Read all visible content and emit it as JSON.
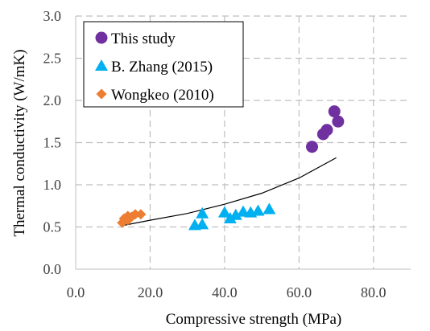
{
  "chart_data": {
    "type": "scatter",
    "xlabel": "Compressive strength (MPa)",
    "ylabel": "Thermal conductivity (W/mK)",
    "xlim": [
      0,
      90
    ],
    "ylim": [
      0,
      3.0
    ],
    "x_ticks": [
      0,
      20,
      40,
      60,
      80
    ],
    "x_tick_labels": [
      "0.0",
      "20.0",
      "40.0",
      "60.0",
      "80.0"
    ],
    "y_ticks": [
      0,
      0.5,
      1.0,
      1.5,
      2.0,
      2.5,
      3.0
    ],
    "y_tick_labels": [
      "0.0",
      "0.5",
      "1.0",
      "1.5",
      "2.0",
      "2.5",
      "3.0"
    ],
    "grid": true,
    "legend_position": "top-left",
    "series": [
      {
        "name": "This study",
        "marker": "circle",
        "color": "#7030A0",
        "points": [
          [
            63.5,
            1.45
          ],
          [
            66.5,
            1.6
          ],
          [
            67.5,
            1.65
          ],
          [
            69.5,
            1.87
          ],
          [
            70.5,
            1.75
          ]
        ]
      },
      {
        "name": "B. Zhang (2015)",
        "marker": "triangle",
        "color": "#00B0F0",
        "points": [
          [
            32,
            0.52
          ],
          [
            34,
            0.53
          ],
          [
            34,
            0.66
          ],
          [
            40,
            0.67
          ],
          [
            41.5,
            0.6
          ],
          [
            43,
            0.64
          ],
          [
            45,
            0.68
          ],
          [
            47,
            0.67
          ],
          [
            49,
            0.69
          ],
          [
            52,
            0.71
          ]
        ]
      },
      {
        "name": "Wongkeo (2010)",
        "marker": "diamond",
        "color": "#ED7D31",
        "points": [
          [
            12.5,
            0.55
          ],
          [
            13,
            0.6
          ],
          [
            14,
            0.58
          ],
          [
            14,
            0.63
          ],
          [
            15,
            0.62
          ],
          [
            16,
            0.65
          ],
          [
            17.5,
            0.65
          ]
        ]
      }
    ],
    "trendline": {
      "color": "#000000",
      "points": [
        [
          13,
          0.52
        ],
        [
          20,
          0.58
        ],
        [
          30,
          0.66
        ],
        [
          40,
          0.77
        ],
        [
          50,
          0.9
        ],
        [
          60,
          1.08
        ],
        [
          70,
          1.32
        ]
      ]
    }
  }
}
